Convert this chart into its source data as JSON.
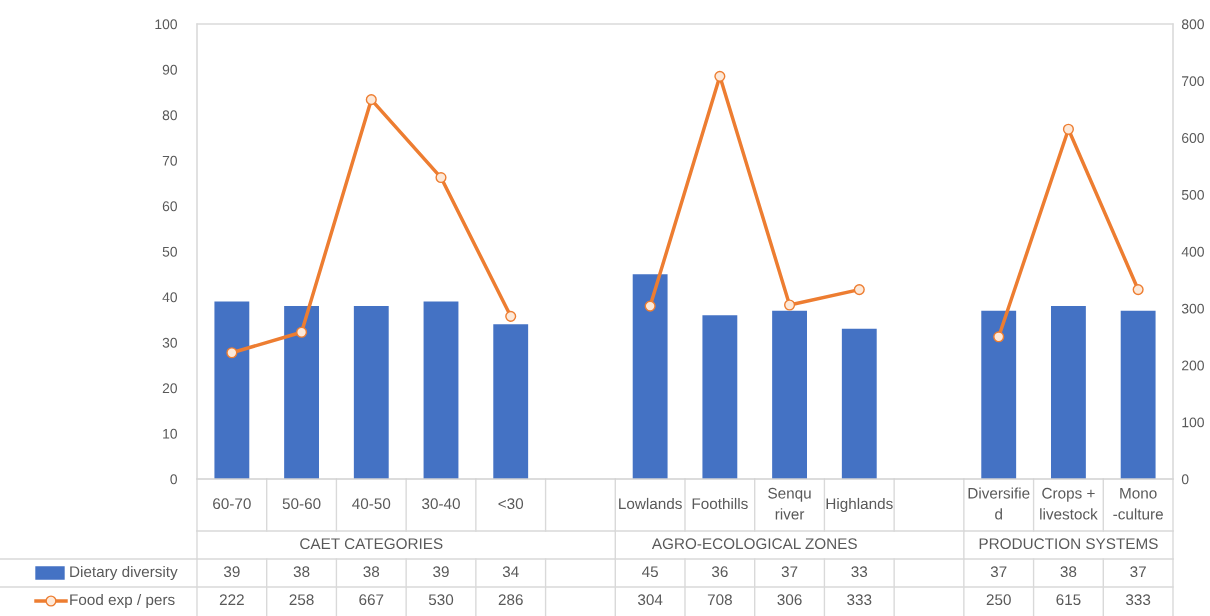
{
  "chart_data": {
    "type": "bar",
    "categories": [
      "60-70",
      "50-60",
      "40-50",
      "30-40",
      "<30",
      null,
      "Lowlands",
      "Foothills",
      "Senqu\nriver",
      "Highlands",
      null,
      "Diversifie\nd",
      "Crops +\nlivestock",
      "Mono\n-culture"
    ],
    "series": [
      {
        "name": "Dietary diversity",
        "color": "#4472c4",
        "values": [
          39,
          38,
          38,
          39,
          34,
          null,
          45,
          36,
          37,
          33,
          null,
          37,
          38,
          37
        ]
      },
      {
        "name": "Food exp / pers",
        "type": "line",
        "axis": "y2",
        "color": "#ed7d31",
        "values": [
          222,
          258,
          667,
          530,
          286,
          null,
          304,
          708,
          306,
          333,
          null,
          250,
          615,
          333
        ]
      }
    ],
    "annotations": [
      "CAET CATEGORIES",
      "AGRO-ECOLOGICAL ZONES",
      "PRODUCTION SYSTEMS"
    ],
    "ylim": [
      0,
      100
    ],
    "yticks": [
      0,
      10,
      20,
      30,
      40,
      50,
      60,
      70,
      80,
      90,
      100
    ],
    "y2lim": [
      0,
      800
    ],
    "y2ticks": [
      0,
      100,
      200,
      300,
      400,
      500,
      600,
      700,
      800
    ],
    "data_labels": true,
    "legend": "bottom",
    "marker": "circle",
    "line_style": "solid",
    "grid": false
  }
}
